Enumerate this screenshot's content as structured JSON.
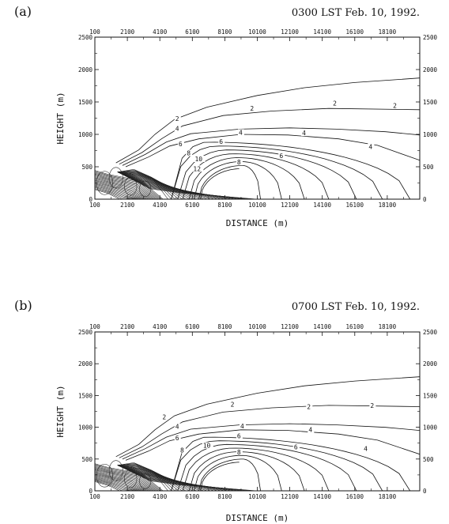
{
  "chart_data": [
    {
      "type": "contour",
      "panel_label": "(a)",
      "title": "0300 LST Feb. 10, 1992.",
      "xlabel": "DISTANCE (m)",
      "ylabel": "HEIGHT (m)",
      "xlim": [
        100,
        20100
      ],
      "ylim": [
        0,
        2500
      ],
      "xticks": [
        100,
        2100,
        4100,
        6100,
        8100,
        10100,
        12100,
        14100,
        16100,
        18100
      ],
      "yticks": [
        0,
        500,
        1000,
        1500,
        2000,
        2500
      ],
      "contour_labels": [
        {
          "text": "2",
          "x": 5200,
          "y": 1230
        },
        {
          "text": "2",
          "x": 9800,
          "y": 1390
        },
        {
          "text": "2",
          "x": 14900,
          "y": 1470
        },
        {
          "text": "2",
          "x": 18600,
          "y": 1430
        },
        {
          "text": "4",
          "x": 5200,
          "y": 1080
        },
        {
          "text": "4",
          "x": 9100,
          "y": 1020
        },
        {
          "text": "4",
          "x": 13000,
          "y": 1010
        },
        {
          "text": "4",
          "x": 17100,
          "y": 800
        },
        {
          "text": "6",
          "x": 5400,
          "y": 840
        },
        {
          "text": "6",
          "x": 7900,
          "y": 880
        },
        {
          "text": "6",
          "x": 11600,
          "y": 660
        },
        {
          "text": "8",
          "x": 5900,
          "y": 700
        },
        {
          "text": "8",
          "x": 9000,
          "y": 560
        },
        {
          "text": "10",
          "x": 6400,
          "y": 610
        },
        {
          "text": "12",
          "x": 6300,
          "y": 460
        }
      ]
    },
    {
      "type": "contour",
      "panel_label": "(b)",
      "title": "0700 LST Feb. 10, 1992.",
      "xlabel": "DISTANCE (m)",
      "ylabel": "HEIGHT (m)",
      "xlim": [
        100,
        20100
      ],
      "ylim": [
        0,
        2500
      ],
      "xticks": [
        100,
        2100,
        4100,
        6100,
        8100,
        10100,
        12100,
        14100,
        16100,
        18100
      ],
      "yticks": [
        0,
        500,
        1000,
        1500,
        2000,
        2500
      ],
      "contour_labels": [
        {
          "text": "2",
          "x": 4400,
          "y": 1150
        },
        {
          "text": "2",
          "x": 8600,
          "y": 1350
        },
        {
          "text": "2",
          "x": 13300,
          "y": 1310
        },
        {
          "text": "2",
          "x": 17200,
          "y": 1330
        },
        {
          "text": "4",
          "x": 5200,
          "y": 1000
        },
        {
          "text": "4",
          "x": 9200,
          "y": 1010
        },
        {
          "text": "4",
          "x": 13400,
          "y": 950
        },
        {
          "text": "4",
          "x": 16800,
          "y": 650
        },
        {
          "text": "6",
          "x": 5200,
          "y": 820
        },
        {
          "text": "6",
          "x": 9000,
          "y": 850
        },
        {
          "text": "6",
          "x": 12500,
          "y": 680
        },
        {
          "text": "8",
          "x": 5500,
          "y": 630
        },
        {
          "text": "8",
          "x": 9000,
          "y": 600
        },
        {
          "text": "10",
          "x": 6900,
          "y": 700
        }
      ]
    }
  ]
}
